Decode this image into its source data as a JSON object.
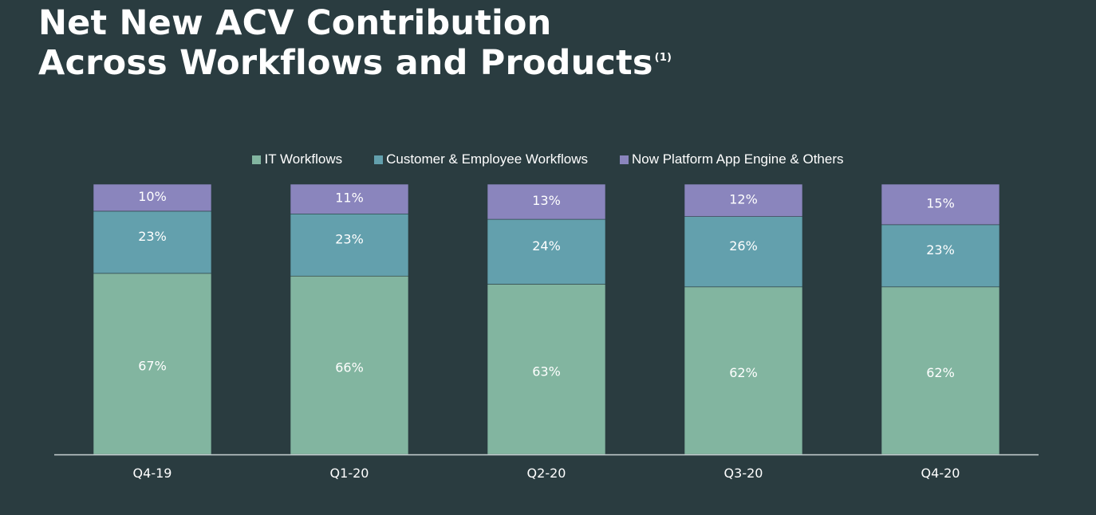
{
  "title": {
    "line1": "Net New ACV Contribution",
    "line2": "Across Workflows and Products",
    "footnote_marker": "(1)"
  },
  "colors": {
    "background": "#2a3c40",
    "it_workflows": "#82b5a0",
    "customer_employee": "#63a0ad",
    "now_platform": "#8a85bd",
    "axis": "#c9d1d3",
    "text": "#ffffff"
  },
  "chart_data": {
    "type": "bar",
    "stacked": true,
    "title": "Net New ACV Contribution Across Workflows and Products",
    "xlabel": "",
    "ylabel": "",
    "ylim": [
      0,
      100
    ],
    "legend_position": "top-center",
    "categories": [
      "Q4-19",
      "Q1-20",
      "Q2-20",
      "Q3-20",
      "Q4-20"
    ],
    "series": [
      {
        "name": "IT Workflows",
        "color_key": "it_workflows",
        "values": [
          67,
          66,
          63,
          62,
          62
        ],
        "labels": [
          "67%",
          "66%",
          "63%",
          "62%",
          "62%"
        ]
      },
      {
        "name": "Customer & Employee Workflows",
        "color_key": "customer_employee",
        "values": [
          23,
          23,
          24,
          26,
          23
        ],
        "labels": [
          "23%",
          "23%",
          "24%",
          "26%",
          "23%"
        ]
      },
      {
        "name": "Now Platform App Engine & Others",
        "color_key": "now_platform",
        "values": [
          10,
          11,
          13,
          12,
          15
        ],
        "labels": [
          "10%",
          "11%",
          "13%",
          "12%",
          "15%"
        ]
      }
    ]
  }
}
